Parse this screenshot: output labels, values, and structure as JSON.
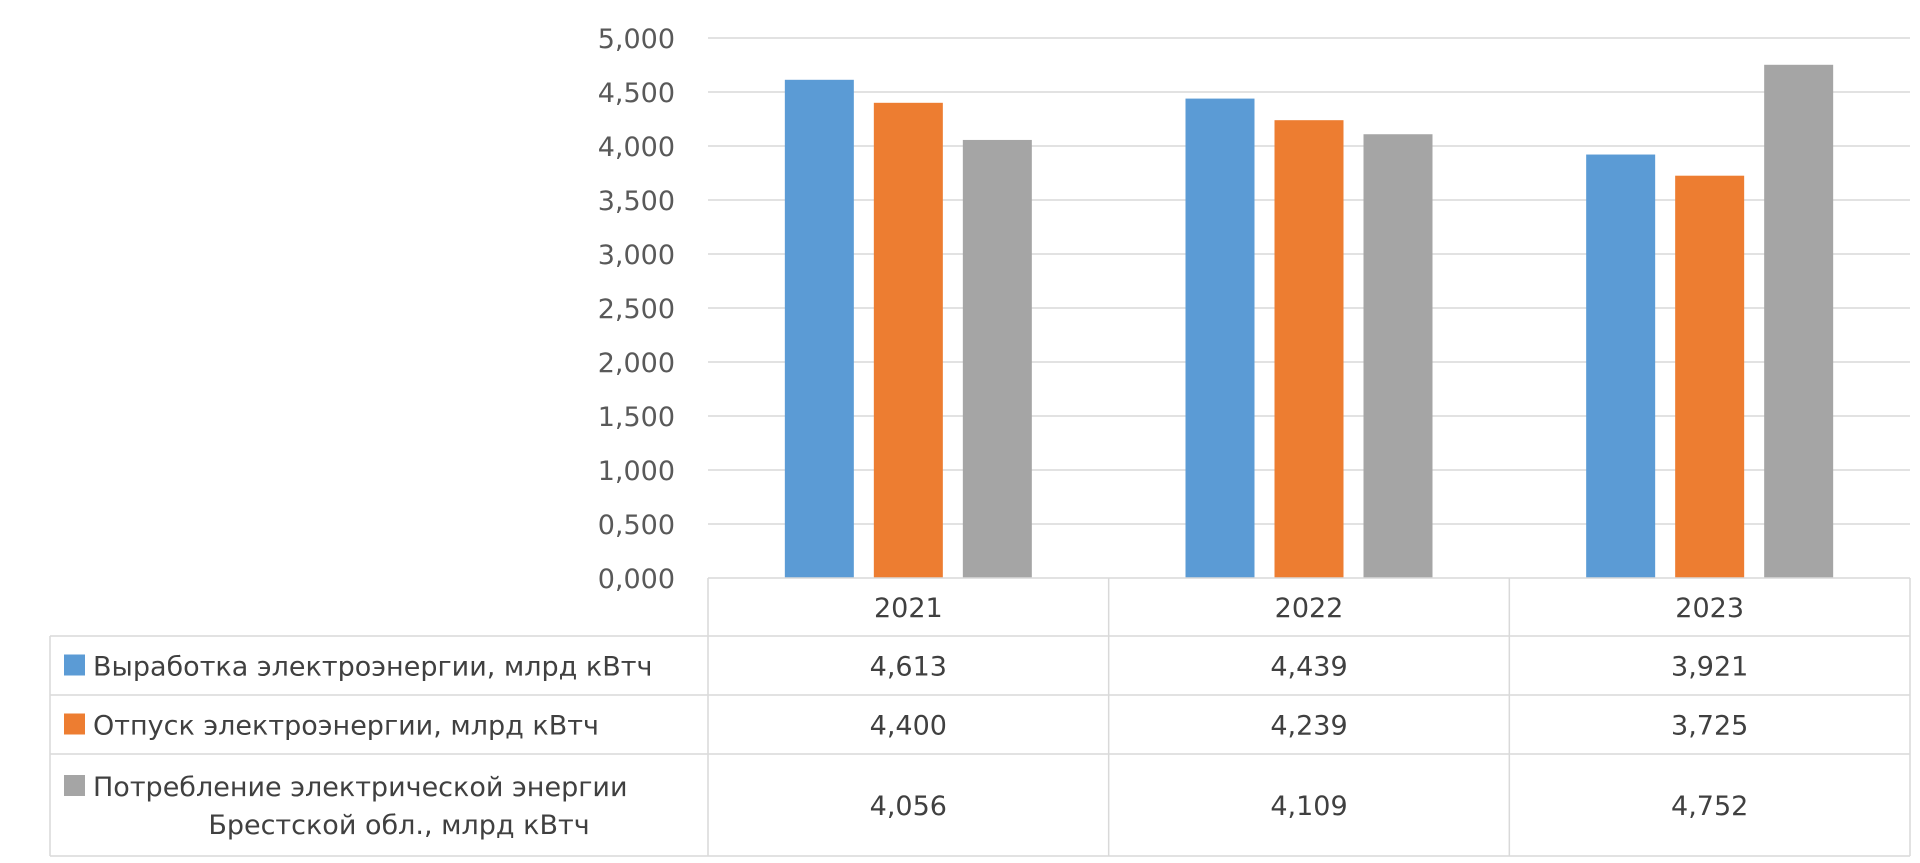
{
  "chart_data": {
    "type": "bar",
    "title": "",
    "xlabel": "",
    "ylabel": "",
    "categories": [
      "2021",
      "2022",
      "2023"
    ],
    "ylim": [
      0,
      5
    ],
    "y_ticks": [
      "0,000",
      "0,500",
      "1,000",
      "1,500",
      "2,000",
      "2,500",
      "3,000",
      "3,500",
      "4,000",
      "4,500",
      "5,000"
    ],
    "grid": true,
    "legend": "data-table-below",
    "series": [
      {
        "name": "Выработка электроэнергии, млрд кВтч",
        "label_lines": [
          "Выработка электроэнергии, млрд кВтч"
        ],
        "color": "#5B9BD5",
        "values": [
          4.613,
          4.439,
          3.921
        ],
        "value_labels": [
          "4,613",
          "4,439",
          "3,921"
        ]
      },
      {
        "name": "Отпуск электроэнергии, млрд кВтч",
        "label_lines": [
          "Отпуск электроэнергии, млрд кВтч"
        ],
        "color": "#ED7D31",
        "values": [
          4.4,
          4.239,
          3.725
        ],
        "value_labels": [
          "4,400",
          "4,239",
          "3,725"
        ]
      },
      {
        "name": "Потребление электрической энергии Брестской обл., млрд кВтч",
        "label_lines": [
          "Потребление электрической энергии",
          "Брестской обл., млрд кВтч"
        ],
        "color": "#A5A5A5",
        "values": [
          4.056,
          4.109,
          4.752
        ],
        "value_labels": [
          "4,056",
          "4,109",
          "4,752"
        ]
      }
    ]
  }
}
